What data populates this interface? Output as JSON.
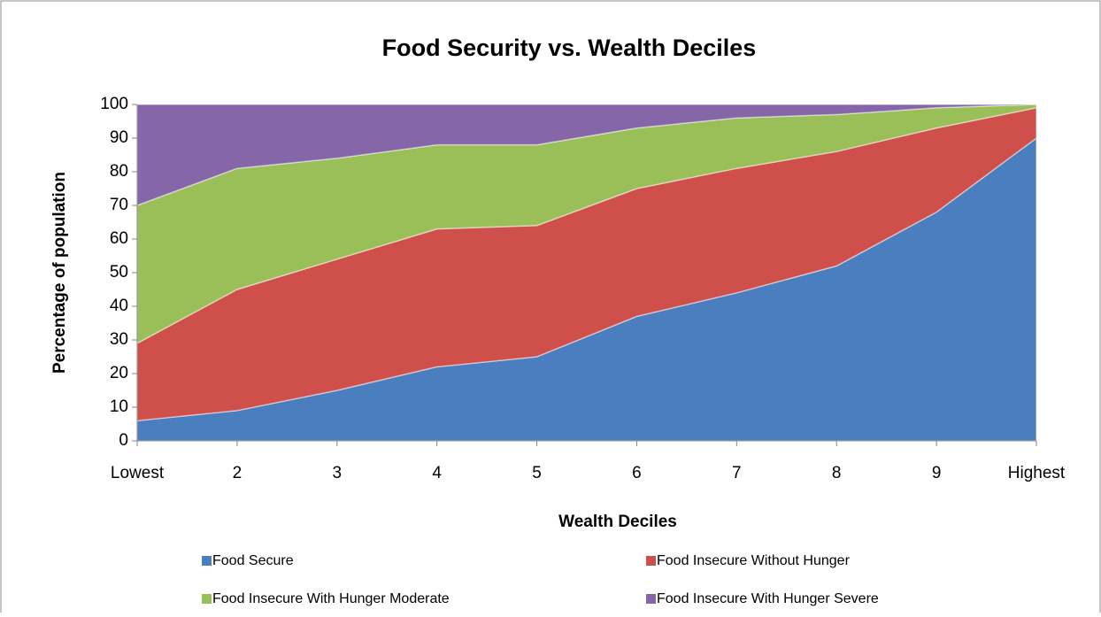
{
  "chart_data": {
    "type": "stacked_area",
    "title": "Food Security vs. Wealth Deciles",
    "x_label": "Wealth Deciles",
    "y_label": "Percentage of  population",
    "categories": [
      "Lowest",
      "2",
      "3",
      "4",
      "5",
      "6",
      "7",
      "8",
      "9",
      "Highest"
    ],
    "series": [
      {
        "name": "Food Secure",
        "color": "#4a7ebf",
        "values": [
          6,
          9,
          15,
          22,
          25,
          37,
          44,
          52,
          68,
          90
        ]
      },
      {
        "name": "Food Insecure Without Hunger",
        "color": "#cf4f4b",
        "values": [
          23,
          36,
          39,
          41,
          39,
          38,
          37,
          34,
          25,
          9
        ]
      },
      {
        "name": "Food Insecure With Hunger Moderate",
        "color": "#9bbf58",
        "values": [
          41,
          36,
          30,
          25,
          24,
          18,
          15,
          11,
          6,
          1
        ]
      },
      {
        "name": "Food Insecure With Hunger Severe",
        "color": "#8566a8",
        "values": [
          30,
          19,
          16,
          12,
          12,
          7,
          4,
          3,
          1,
          0
        ]
      }
    ],
    "ylim": [
      0,
      100
    ],
    "yticks": [
      0,
      10,
      20,
      30,
      40,
      50,
      60,
      70,
      80,
      90,
      100
    ],
    "grid": false,
    "legend": "bottom"
  }
}
